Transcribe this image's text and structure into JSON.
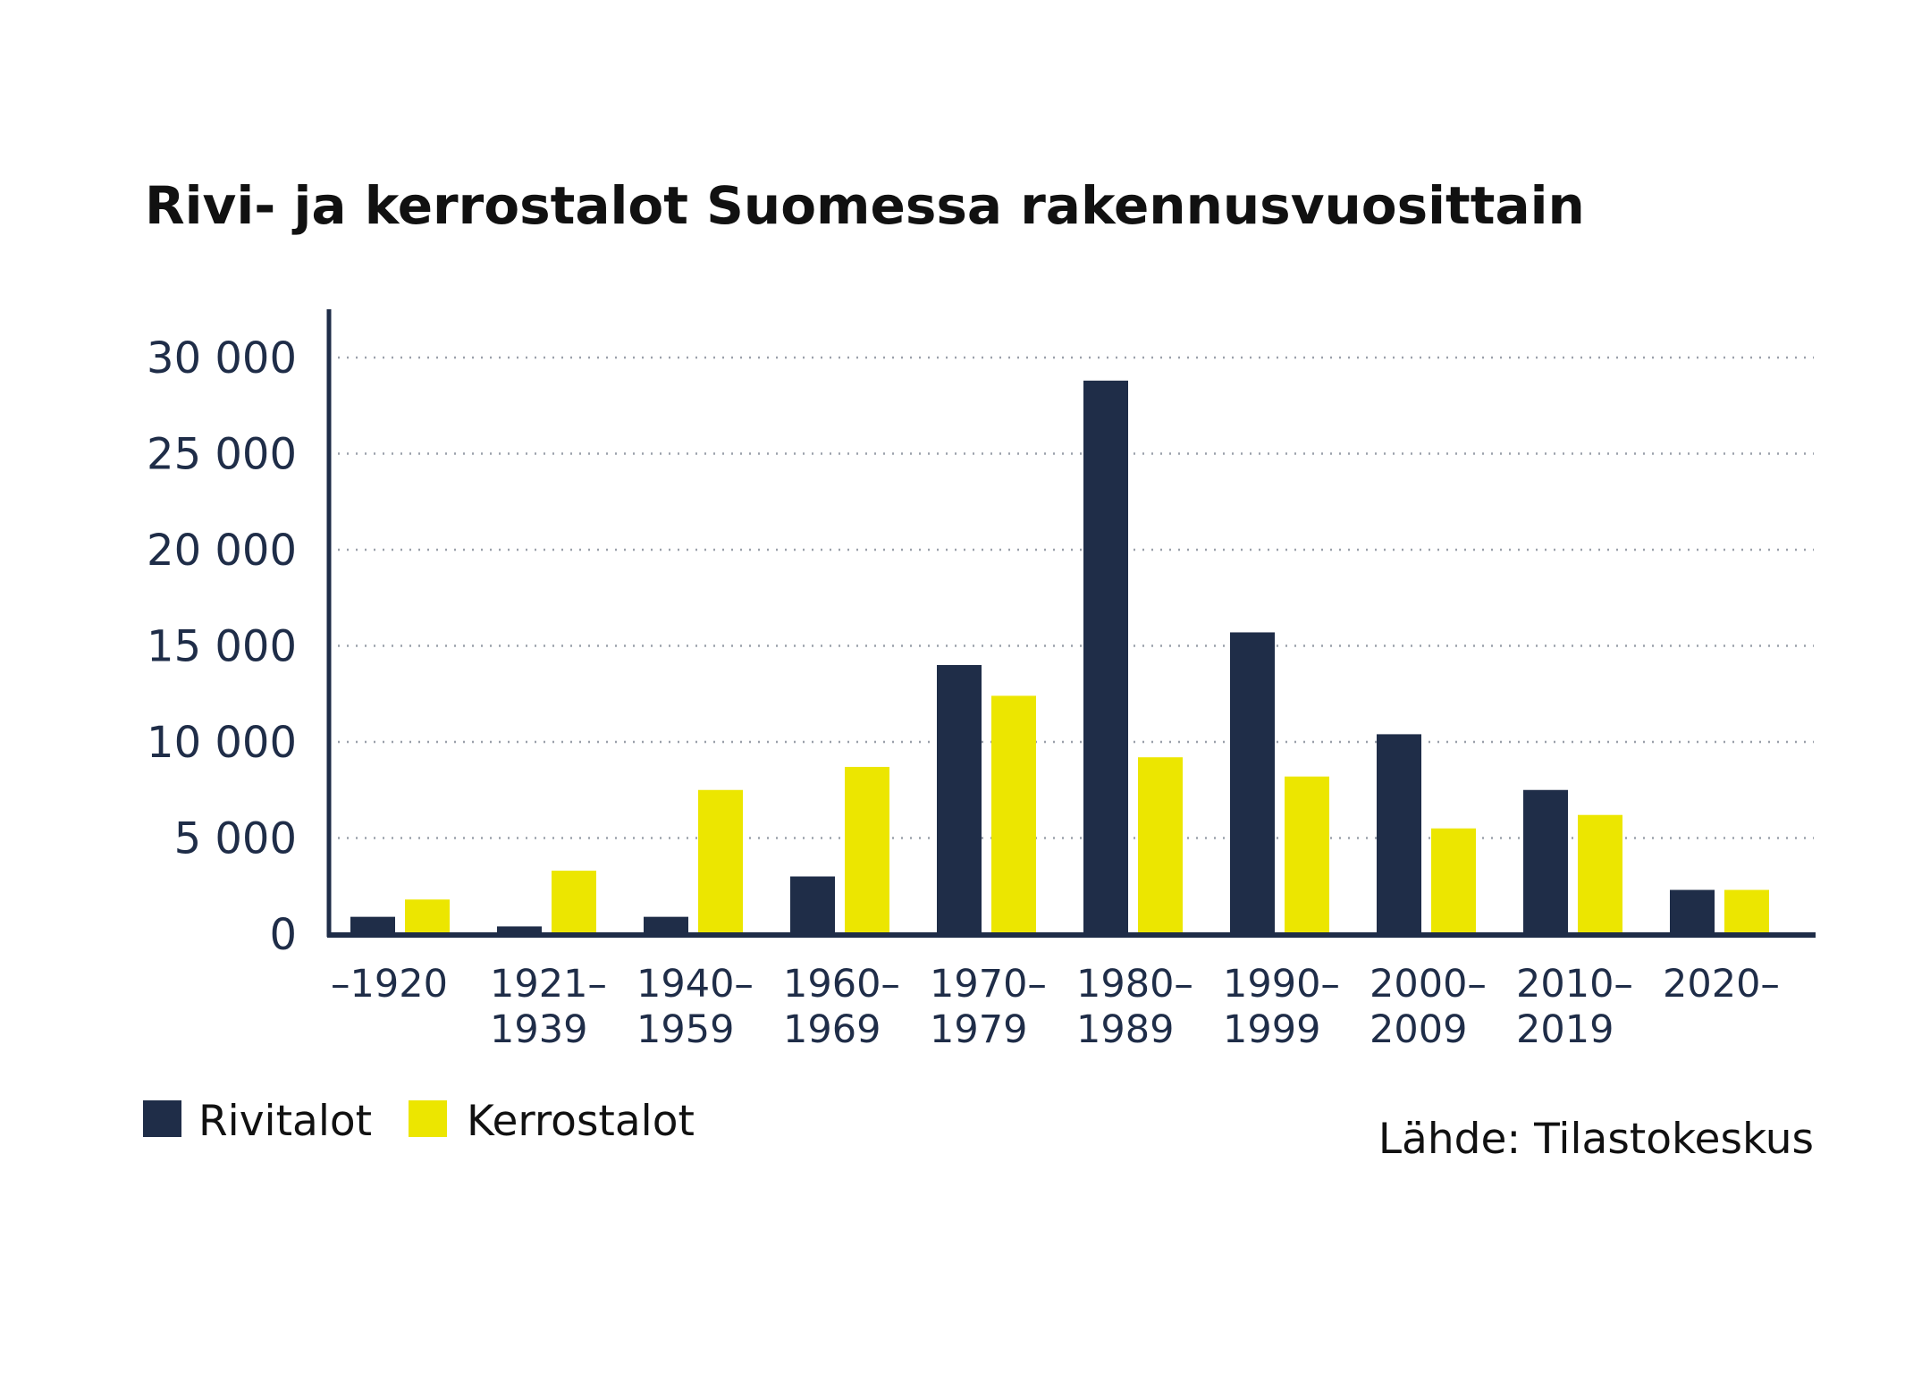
{
  "chart_data": {
    "type": "bar",
    "title": "Rivi- ja kerrostalot Suomessa rakennusvuosittain",
    "categories": [
      [
        "–1920"
      ],
      [
        "1921–",
        "1939"
      ],
      [
        "1940–",
        "1959"
      ],
      [
        "1960–",
        "1969"
      ],
      [
        "1970–",
        "1979"
      ],
      [
        "1980–",
        "1989"
      ],
      [
        "1990–",
        "1999"
      ],
      [
        "2000–",
        "2009"
      ],
      [
        "2010–",
        "2019"
      ],
      [
        "2020–"
      ]
    ],
    "series": [
      {
        "name": "Rivitalot",
        "color": "#1f2d48",
        "values": [
          900,
          400,
          900,
          3000,
          14000,
          28800,
          15700,
          10400,
          7500,
          2300
        ]
      },
      {
        "name": "Kerrostalot",
        "color": "#ece600",
        "values": [
          1800,
          3300,
          7500,
          8700,
          12400,
          9200,
          8200,
          5500,
          6200,
          2300
        ]
      }
    ],
    "yticks": [
      0,
      5000,
      10000,
      15000,
      20000,
      25000,
      30000
    ],
    "ytick_labels": [
      "0",
      "5 000",
      "10 000",
      "15 000",
      "20 000",
      "25 000",
      "30 000"
    ],
    "ylim": [
      0,
      30000
    ],
    "xlabel": "",
    "ylabel": "",
    "grid": "horizontal dotted",
    "legend_position": "bottom-left",
    "source": "Lähde: Tilastokeskus"
  }
}
